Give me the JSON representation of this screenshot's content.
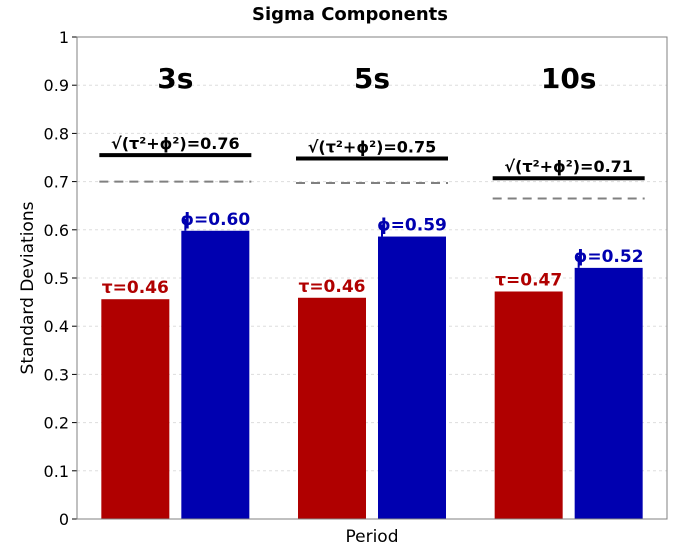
{
  "chart_data": {
    "type": "bar",
    "title": "Sigma Components",
    "xlabel": "Period",
    "ylabel": "Standard Deviations",
    "ylim": [
      0,
      1
    ],
    "yticks": [
      "0",
      "0.1",
      "0.2",
      "0.3",
      "0.4",
      "0.5",
      "0.6",
      "0.7",
      "0.8",
      "0.9",
      "1"
    ],
    "grid": true,
    "categories": [
      "3s",
      "5s",
      "10s"
    ],
    "series": [
      {
        "key": "tau",
        "color": "#b00000",
        "values": [
          0.456,
          0.459,
          0.472
        ],
        "labels": [
          "τ=0.46",
          "τ=0.46",
          "τ=0.47"
        ]
      },
      {
        "key": "phi",
        "color": "#0000b0",
        "values": [
          0.598,
          0.586,
          0.521
        ],
        "labels": [
          "ϕ=0.60",
          "ϕ=0.59",
          "ϕ=0.52"
        ]
      }
    ],
    "total": {
      "values": [
        0.755,
        0.748,
        0.707
      ],
      "labels": [
        "√(τ²+ϕ²)=0.76",
        "√(τ²+ϕ²)=0.75",
        "√(τ²+ϕ²)=0.71"
      ],
      "color": "#000000"
    },
    "reference_line": {
      "values": [
        0.7,
        0.697,
        0.665
      ],
      "color": "#808080",
      "style": "dashed"
    }
  }
}
